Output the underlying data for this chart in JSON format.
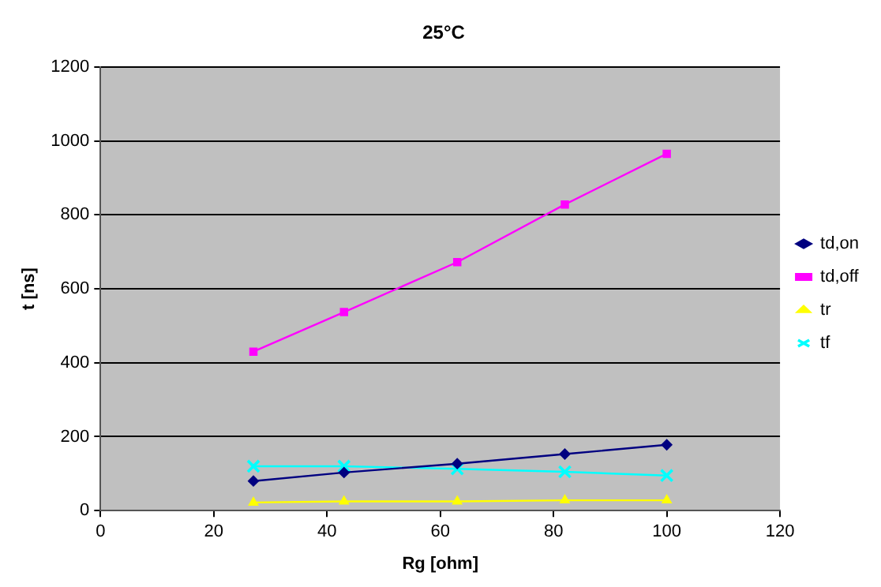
{
  "chart_data": {
    "type": "line",
    "title": "25°C",
    "xlabel": "Rg [ohm]",
    "ylabel": "t [ns]",
    "x": [
      27,
      43,
      63,
      82,
      100
    ],
    "series": [
      {
        "name": "td,on",
        "color": "#000080",
        "marker": "diamond",
        "values": [
          80,
          103,
          127,
          153,
          178
        ]
      },
      {
        "name": "td,off",
        "color": "#ff00ff",
        "marker": "square",
        "values": [
          430,
          537,
          672,
          828,
          965
        ]
      },
      {
        "name": "tr",
        "color": "#ffff00",
        "marker": "triangle",
        "values": [
          22,
          25,
          25,
          28,
          28
        ]
      },
      {
        "name": "tf",
        "color": "#00ffff",
        "marker": "cross",
        "values": [
          120,
          120,
          113,
          105,
          95
        ]
      }
    ],
    "xlim": [
      0,
      120
    ],
    "xticks": [
      0,
      20,
      40,
      60,
      80,
      100,
      120
    ],
    "ylim": [
      0,
      1200
    ],
    "yticks": [
      0,
      200,
      400,
      600,
      800,
      1000,
      1200
    ],
    "grid": "y",
    "legend": "right"
  }
}
